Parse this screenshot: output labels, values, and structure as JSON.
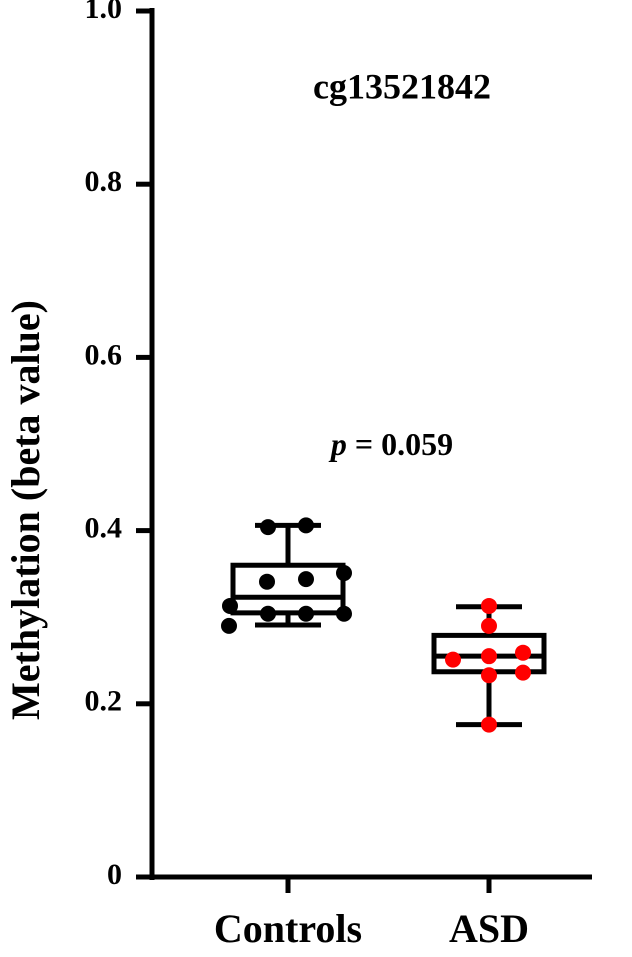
{
  "chart_data": {
    "type": "box",
    "title": "cg13521842",
    "annotation": {
      "symbol": "p",
      "text": "= 0.059"
    },
    "y_label": "Methylation (beta value)",
    "categories": [
      "Controls",
      "ASD"
    ],
    "ylim": [
      0,
      1
    ],
    "yticks": [
      0,
      0.2,
      0.4,
      0.6,
      0.8,
      {
        "value": 1,
        "label": "1.0"
      }
    ],
    "series": [
      {
        "name": "Controls",
        "color": "#000000",
        "min": 0.291,
        "q1": 0.305,
        "median": 0.323,
        "q3": 0.36,
        "max": 0.406,
        "values": [
          0.404,
          0.406,
          0.341,
          0.344,
          0.351,
          0.313,
          0.304,
          0.304,
          0.304,
          0.29
        ]
      },
      {
        "name": "ASD",
        "color": "#ff0000",
        "min": 0.176,
        "q1": 0.237,
        "median": 0.255,
        "q3": 0.279,
        "max": 0.312,
        "values": [
          0.313,
          0.29,
          0.251,
          0.255,
          0.259,
          0.233,
          0.236,
          0.176
        ]
      }
    ]
  }
}
